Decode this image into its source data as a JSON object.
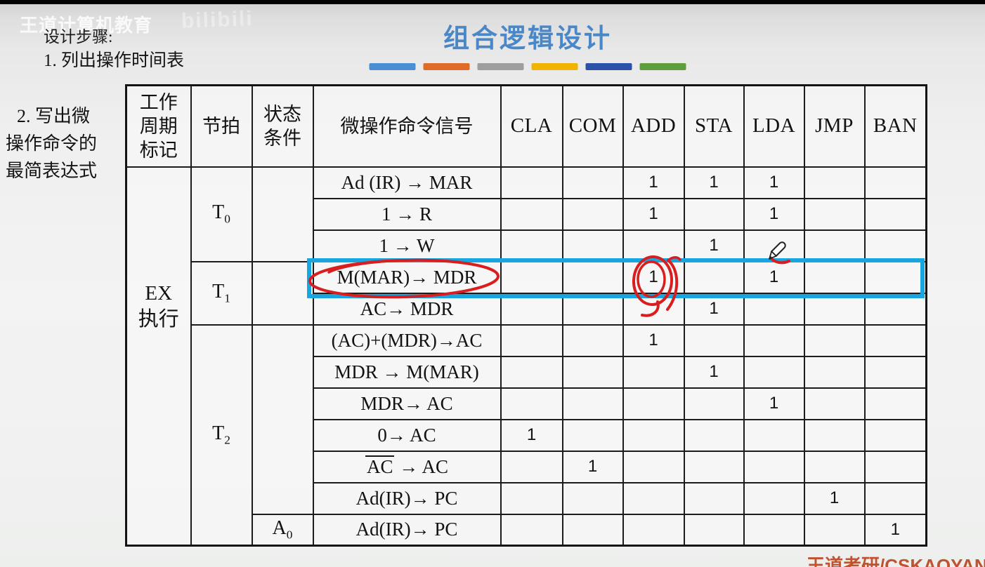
{
  "slide": {
    "watermark_brand": "王道计算机教育",
    "watermark_platform": "bilibili",
    "title": "组合逻辑设计",
    "title_color": "#4a87c6",
    "accent_bars": [
      "#4a8fd3",
      "#e06a28",
      "#9e9e9e",
      "#f0b400",
      "#2b52a8",
      "#5e9e3c"
    ],
    "steps_heading": "设计步骤:",
    "step1": "1. 列出操作时间表",
    "step2_lines": [
      "2. 写出微",
      "操作命令的",
      "最简表达式"
    ],
    "footer_credit": "王道考研/CSKAOYAN",
    "footer_color": "#c0532f"
  },
  "table": {
    "header": {
      "cycle_lines": [
        "工作",
        "周期",
        "标记"
      ],
      "beat": "节拍",
      "condition_lines": [
        "状态",
        "条件"
      ],
      "signal": "微操作命令信号",
      "instructions": [
        "CLA",
        "COM",
        "ADD",
        "STA",
        "LDA",
        "JMP",
        "BAN"
      ]
    },
    "cycle": {
      "lines": [
        "EX",
        "执行"
      ],
      "span": 12
    },
    "beats": [
      {
        "base": "T",
        "sub": "0",
        "row": 0,
        "span": 3
      },
      {
        "base": "T",
        "sub": "1",
        "row": 3,
        "span": 2
      },
      {
        "base": "T",
        "sub": "2",
        "row": 5,
        "span": 7
      }
    ],
    "conditions": [
      {
        "base": "",
        "sub": "",
        "row": 0,
        "span": 3
      },
      {
        "base": "",
        "sub": "",
        "row": 3,
        "span": 2
      },
      {
        "base": "",
        "sub": "",
        "row": 5,
        "span": 6
      },
      {
        "base": "A",
        "sub": "0",
        "row": 11,
        "span": 1
      }
    ],
    "rows": [
      {
        "signal": [
          {
            "t": "Ad (IR) → MAR"
          }
        ],
        "marks": [
          "",
          "",
          "1",
          "1",
          "1",
          "",
          ""
        ]
      },
      {
        "signal": [
          {
            "t": "1 → R"
          }
        ],
        "marks": [
          "",
          "",
          "1",
          "",
          "1",
          "",
          ""
        ]
      },
      {
        "signal": [
          {
            "t": "1 → W"
          }
        ],
        "marks": [
          "",
          "",
          "",
          "1",
          "",
          "",
          ""
        ]
      },
      {
        "signal": [
          {
            "t": "M(MAR)→ MDR"
          }
        ],
        "marks": [
          "",
          "",
          "1",
          "",
          "1",
          "",
          ""
        ],
        "highlighted": true
      },
      {
        "signal": [
          {
            "t": "AC→ MDR"
          }
        ],
        "marks": [
          "",
          "",
          "",
          "1",
          "",
          "",
          ""
        ]
      },
      {
        "signal": [
          {
            "t": "(AC)+(MDR)→AC"
          }
        ],
        "marks": [
          "",
          "",
          "1",
          "",
          "",
          "",
          ""
        ]
      },
      {
        "signal": [
          {
            "t": "MDR → M(MAR)"
          }
        ],
        "marks": [
          "",
          "",
          "",
          "1",
          "",
          "",
          ""
        ]
      },
      {
        "signal": [
          {
            "t": "MDR→ AC"
          }
        ],
        "marks": [
          "",
          "",
          "",
          "",
          "1",
          "",
          ""
        ]
      },
      {
        "signal": [
          {
            "t": "0→ AC"
          }
        ],
        "marks": [
          "1",
          "",
          "",
          "",
          "",
          "",
          ""
        ]
      },
      {
        "signal": [
          {
            "t": "AC",
            "overline": true
          },
          {
            "t": " → AC"
          }
        ],
        "marks": [
          "",
          "1",
          "",
          "",
          "",
          "",
          ""
        ]
      },
      {
        "signal": [
          {
            "t": "Ad(IR)→ PC"
          }
        ],
        "marks": [
          "",
          "",
          "",
          "",
          "",
          "1",
          ""
        ]
      },
      {
        "signal": [
          {
            "t": "Ad(IR)→ PC"
          }
        ],
        "marks": [
          "",
          "",
          "",
          "",
          "",
          "",
          "1"
        ]
      }
    ]
  },
  "annotations": {
    "highlight_box_color": "#18a6e0",
    "ink_color": "#d81e1e",
    "pencil_cursor": "pencil-cursor"
  }
}
